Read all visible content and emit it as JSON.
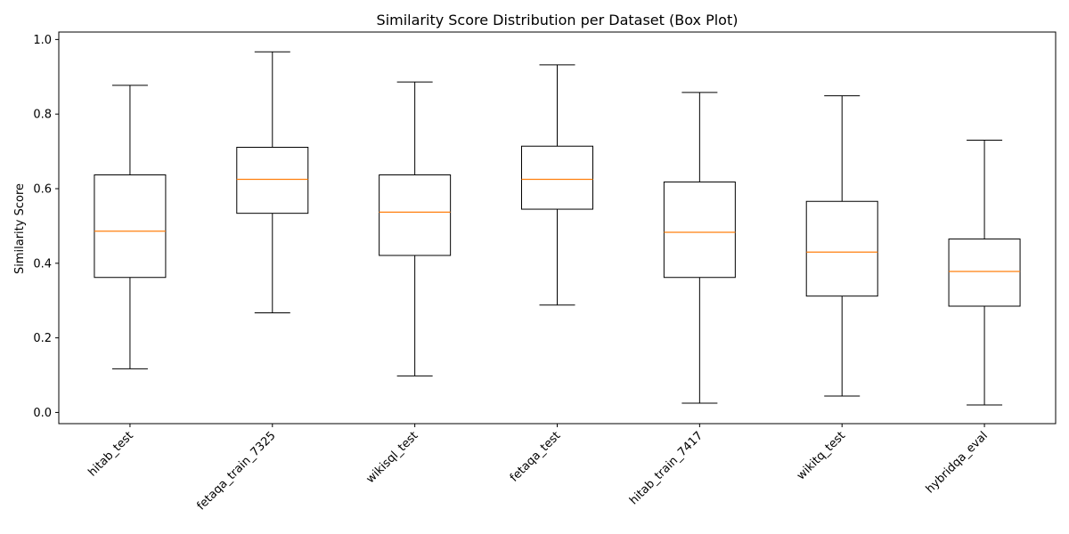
{
  "chart_data": {
    "type": "box",
    "title": "Similarity Score Distribution per Dataset (Box Plot)",
    "xlabel": "",
    "ylabel": "Similarity Score",
    "ylim": [
      -0.03,
      1.02
    ],
    "yticks": [
      0.0,
      0.2,
      0.4,
      0.6,
      0.8,
      1.0
    ],
    "ytick_labels": [
      "0.0",
      "0.2",
      "0.4",
      "0.6",
      "0.8",
      "1.0"
    ],
    "grid": false,
    "legend": "none",
    "colors": {
      "box": "#000000",
      "median": "#ff7f0e",
      "background": "#ffffff"
    },
    "categories": [
      "hitab_test",
      "fetaqa_train_7325",
      "wikisql_test",
      "fetaqa_test",
      "hitab_train_7417",
      "wikitq_test",
      "hybridqa_eval"
    ],
    "boxes": [
      {
        "label": "hitab_test",
        "whisker_low": 0.117,
        "q1": 0.362,
        "median": 0.486,
        "q3": 0.637,
        "whisker_high": 0.877
      },
      {
        "label": "fetaqa_train_7325",
        "whisker_low": 0.267,
        "q1": 0.534,
        "median": 0.625,
        "q3": 0.711,
        "whisker_high": 0.967
      },
      {
        "label": "wikisql_test",
        "whisker_low": 0.098,
        "q1": 0.421,
        "median": 0.537,
        "q3": 0.637,
        "whisker_high": 0.886
      },
      {
        "label": "fetaqa_test",
        "whisker_low": 0.288,
        "q1": 0.545,
        "median": 0.625,
        "q3": 0.714,
        "whisker_high": 0.932
      },
      {
        "label": "hitab_train_7417",
        "whisker_low": 0.025,
        "q1": 0.362,
        "median": 0.483,
        "q3": 0.618,
        "whisker_high": 0.858
      },
      {
        "label": "wikitq_test",
        "whisker_low": 0.044,
        "q1": 0.312,
        "median": 0.43,
        "q3": 0.566,
        "whisker_high": 0.849
      },
      {
        "label": "hybridqa_eval",
        "whisker_low": 0.02,
        "q1": 0.285,
        "median": 0.378,
        "q3": 0.465,
        "whisker_high": 0.73
      }
    ]
  }
}
